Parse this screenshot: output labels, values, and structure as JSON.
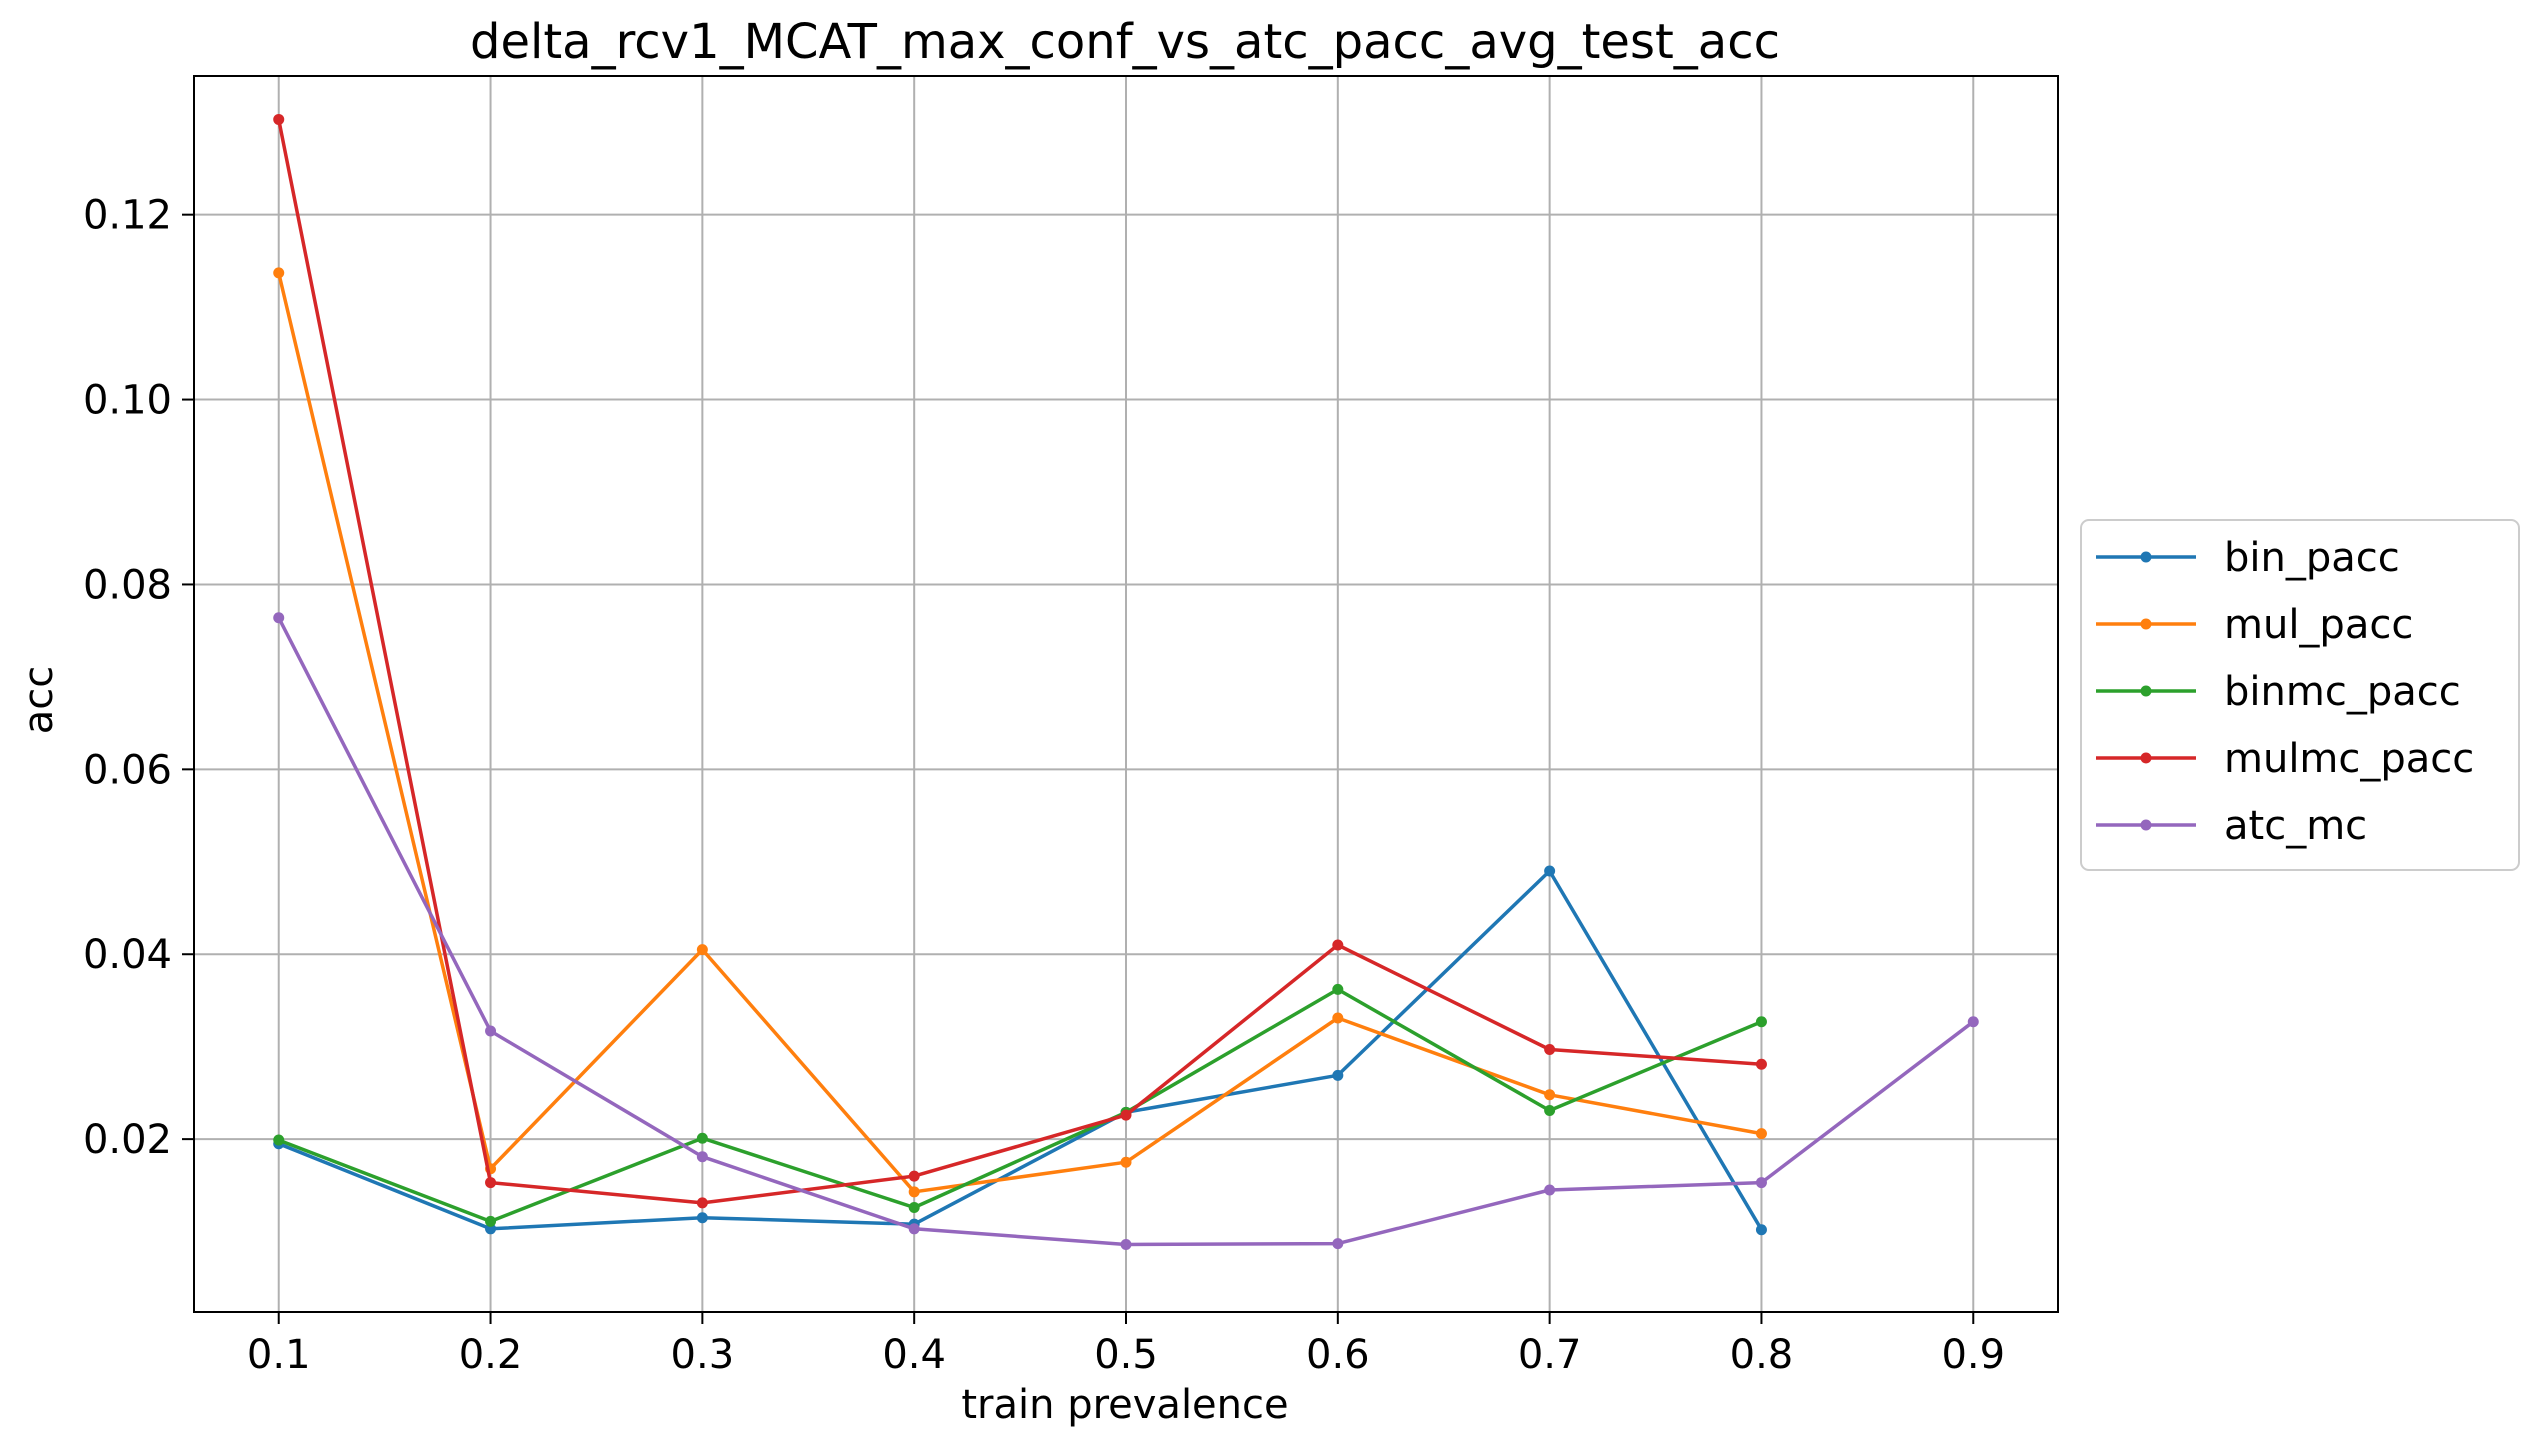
{
  "chart_data": {
    "type": "line",
    "title": "delta_rcv1_MCAT_max_conf_vs_atc_pacc_avg_test_acc",
    "xlabel": "train prevalence",
    "ylabel": "acc",
    "xlim": [
      0.06,
      0.94
    ],
    "ylim": [
      0.0013,
      0.135
    ],
    "grid": true,
    "legend_placement": "outside-right",
    "xticks": [
      0.1,
      0.2,
      0.3,
      0.4,
      0.5,
      0.6,
      0.7,
      0.8,
      0.9
    ],
    "xtick_labels": [
      "0.1",
      "0.2",
      "0.3",
      "0.4",
      "0.5",
      "0.6",
      "0.7",
      "0.8",
      "0.9"
    ],
    "yticks": [
      0.02,
      0.04,
      0.06,
      0.08,
      0.1,
      0.12
    ],
    "ytick_labels": [
      "0.02",
      "0.04",
      "0.06",
      "0.08",
      "0.10",
      "0.12"
    ],
    "series": [
      {
        "name": "bin_pacc",
        "color": "#1f77b4",
        "x": [
          0.1,
          0.2,
          0.3,
          0.4,
          0.5,
          0.6,
          0.7,
          0.8
        ],
        "y": [
          0.0195,
          0.0103,
          0.0115,
          0.0108,
          0.0229,
          0.0269,
          0.049,
          0.0102
        ]
      },
      {
        "name": "mul_pacc",
        "color": "#ff7f0e",
        "x": [
          0.1,
          0.2,
          0.3,
          0.4,
          0.5,
          0.6,
          0.7,
          0.8
        ],
        "y": [
          0.1137,
          0.0168,
          0.0405,
          0.0143,
          0.0175,
          0.0331,
          0.0248,
          0.0206
        ]
      },
      {
        "name": "binmc_pacc",
        "color": "#2ca02c",
        "x": [
          0.1,
          0.2,
          0.3,
          0.4,
          0.5,
          0.6,
          0.7,
          0.8
        ],
        "y": [
          0.0199,
          0.0111,
          0.0201,
          0.0126,
          0.0229,
          0.0362,
          0.0231,
          0.0327
        ]
      },
      {
        "name": "mulmc_pacc",
        "color": "#d62728",
        "x": [
          0.1,
          0.2,
          0.3,
          0.4,
          0.5,
          0.6,
          0.7,
          0.8
        ],
        "y": [
          0.1303,
          0.0153,
          0.0131,
          0.016,
          0.0226,
          0.041,
          0.0297,
          0.0281
        ]
      },
      {
        "name": "atc_mc",
        "color": "#9467bd",
        "x": [
          0.1,
          0.2,
          0.3,
          0.4,
          0.5,
          0.6,
          0.7,
          0.8,
          0.9
        ],
        "y": [
          0.0764,
          0.0317,
          0.0181,
          0.0103,
          0.0086,
          0.0087,
          0.0145,
          0.0153,
          0.0327
        ]
      }
    ]
  }
}
